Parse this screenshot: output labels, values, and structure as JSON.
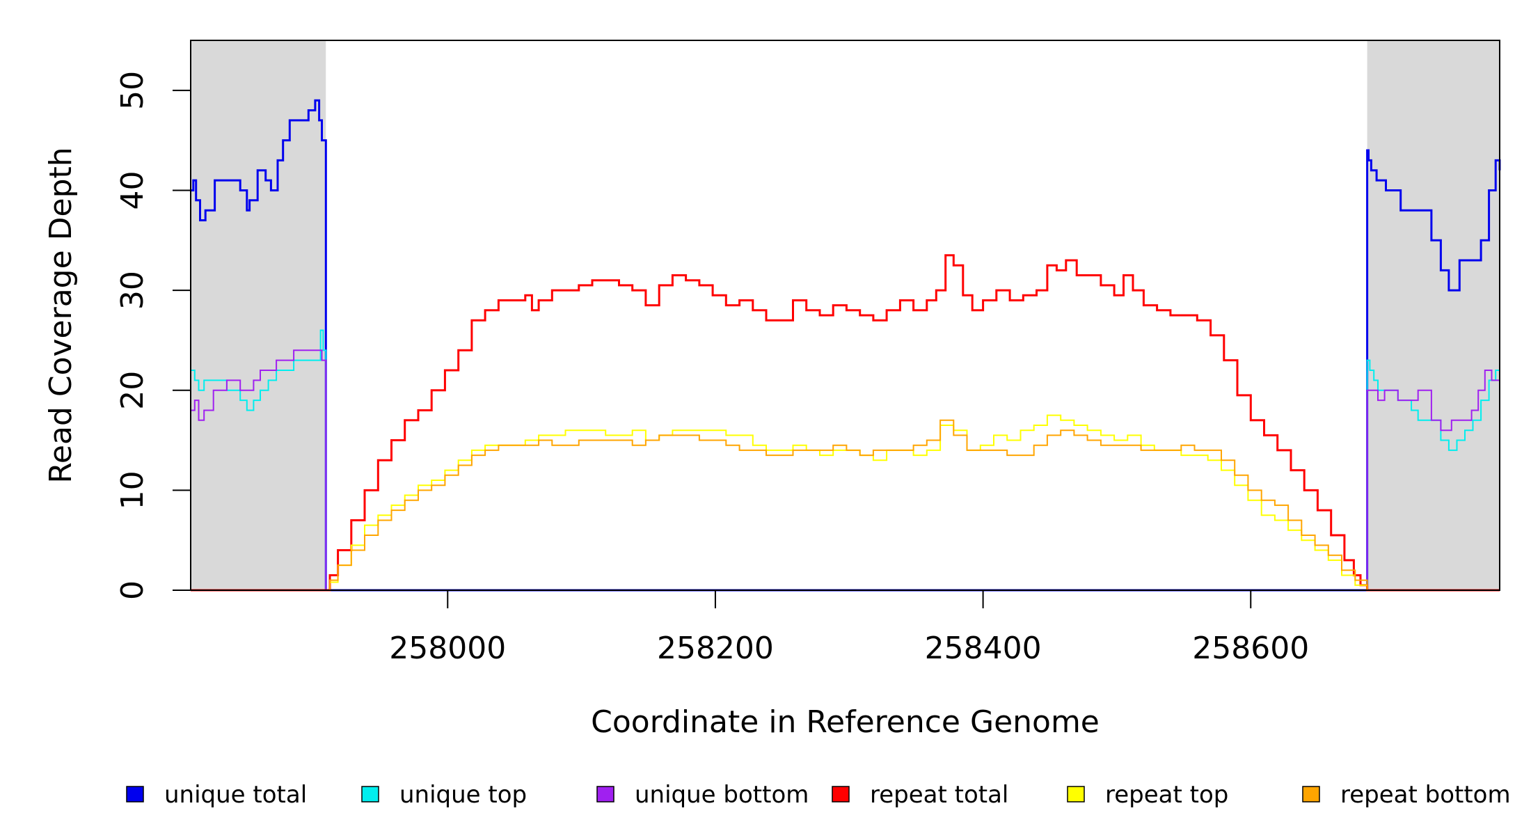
{
  "chart_data": {
    "type": "line",
    "title": "",
    "xlabel": "Coordinate in Reference Genome",
    "ylabel": "Read Coverage Depth",
    "xlim": [
      257808,
      258786
    ],
    "ylim": [
      0,
      55
    ],
    "x_ticks": [
      258000,
      258200,
      258400,
      258600
    ],
    "x_tick_labels": [
      "258000",
      "258200",
      "258400",
      "258600"
    ],
    "y_ticks": [
      0,
      10,
      20,
      30,
      40,
      50
    ],
    "y_tick_labels": [
      "0",
      "10",
      "20",
      "30",
      "40",
      "50"
    ],
    "shaded_regions": [
      {
        "x0": 257808,
        "x1": 257909,
        "color": "#d9d9d9"
      },
      {
        "x0": 258687,
        "x1": 258786,
        "color": "#d9d9d9"
      }
    ],
    "repeat_region": [
      257909,
      258687
    ],
    "grid": false,
    "legend_placement": "bottom",
    "legend": [
      {
        "label": "unique total",
        "color": "#0000ee"
      },
      {
        "label": "unique top",
        "color": "#00eeee"
      },
      {
        "label": "unique bottom",
        "color": "#a020f0"
      },
      {
        "label": "repeat total",
        "color": "#ff0000"
      },
      {
        "label": "repeat top",
        "color": "#ffff00"
      },
      {
        "label": "repeat bottom",
        "color": "#ffa500"
      }
    ],
    "series": [
      {
        "name": "unique total",
        "color": "#0000ee",
        "width": 3,
        "x": [
          257808,
          257810,
          257812,
          257815,
          257819,
          257826,
          257835,
          257845,
          257850,
          257852,
          257858,
          257864,
          257868,
          257873,
          257877,
          257882,
          257888,
          257896,
          257901,
          257904,
          257906,
          257909,
          257909,
          258687,
          258687,
          258688,
          258690,
          258694,
          258701,
          258712,
          258725,
          258735,
          258742,
          258748,
          258756,
          258764,
          258772,
          258778,
          258783,
          258786
        ],
        "y": [
          40,
          41,
          39,
          37,
          38,
          41,
          41,
          40,
          38,
          39,
          42,
          41,
          40,
          43,
          45,
          47,
          47,
          48,
          49,
          47,
          45,
          44,
          0,
          0,
          44,
          43,
          42,
          41,
          40,
          38,
          38,
          35,
          32,
          30,
          33,
          33,
          35,
          40,
          43,
          42
        ]
      },
      {
        "name": "unique top",
        "color": "#00eeee",
        "width": 2,
        "x": [
          257808,
          257811,
          257814,
          257818,
          257825,
          257835,
          257845,
          257850,
          257855,
          257860,
          257866,
          257872,
          257878,
          257885,
          257895,
          257903,
          257905,
          257907,
          257909,
          257909,
          258687,
          258687,
          258689,
          258692,
          258695,
          258700,
          258710,
          258720,
          258725,
          258735,
          258742,
          258748,
          258754,
          258760,
          258766,
          258772,
          258778,
          258783,
          258786
        ],
        "y": [
          22,
          21,
          20,
          21,
          21,
          20,
          19,
          18,
          19,
          20,
          21,
          22,
          22,
          23,
          23,
          23,
          26,
          24,
          21,
          0,
          0,
          23,
          22,
          21,
          20,
          20,
          19,
          18,
          17,
          17,
          15,
          14,
          15,
          16,
          17,
          19,
          21,
          22,
          21
        ]
      },
      {
        "name": "unique bottom",
        "color": "#a020f0",
        "width": 2,
        "x": [
          257808,
          257811,
          257814,
          257818,
          257825,
          257835,
          257845,
          257850,
          257855,
          257860,
          257866,
          257872,
          257878,
          257885,
          257895,
          257903,
          257906,
          257909,
          257909,
          258687,
          258687,
          258690,
          258695,
          258700,
          258710,
          258720,
          258725,
          258735,
          258742,
          258750,
          258758,
          258765,
          258770,
          258775,
          258780,
          258786
        ],
        "y": [
          18,
          19,
          17,
          18,
          20,
          21,
          20,
          20,
          21,
          22,
          22,
          23,
          23,
          24,
          24,
          24,
          23,
          22,
          0,
          0,
          20,
          20,
          19,
          20,
          19,
          19,
          20,
          17,
          16,
          17,
          17,
          18,
          20,
          22,
          21,
          20
        ]
      },
      {
        "name": "repeat total",
        "color": "#ff0000",
        "width": 3,
        "x": [
          257808,
          257909,
          257912,
          257918,
          257928,
          257938,
          257948,
          257958,
          257968,
          257978,
          257988,
          257998,
          258008,
          258018,
          258028,
          258038,
          258048,
          258058,
          258063,
          258068,
          258078,
          258088,
          258098,
          258108,
          258118,
          258128,
          258138,
          258148,
          258158,
          258168,
          258178,
          258188,
          258198,
          258208,
          258218,
          258228,
          258238,
          258248,
          258258,
          258268,
          258278,
          258288,
          258298,
          258308,
          258318,
          258328,
          258338,
          258348,
          258358,
          258365,
          258372,
          258378,
          258385,
          258392,
          258400,
          258410,
          258420,
          258430,
          258440,
          258448,
          258455,
          258462,
          258470,
          258478,
          258488,
          258498,
          258505,
          258512,
          258520,
          258530,
          258540,
          258550,
          258560,
          258570,
          258580,
          258590,
          258600,
          258610,
          258620,
          258630,
          258640,
          258650,
          258660,
          258670,
          258677,
          258682,
          258687,
          258786
        ],
        "y": [
          0,
          0,
          1.5,
          4,
          7,
          10,
          13,
          15,
          17,
          18,
          20,
          22,
          24,
          27,
          28,
          29,
          29,
          29.5,
          28,
          29,
          30,
          30,
          30.5,
          31,
          31,
          30.5,
          30,
          28.5,
          30.5,
          31.5,
          31,
          30.5,
          29.5,
          28.5,
          29,
          28,
          27,
          27,
          29,
          28,
          27.5,
          28.5,
          28,
          27.5,
          27,
          28,
          29,
          28,
          29,
          30,
          33.5,
          32.5,
          29.5,
          28,
          29,
          30,
          29,
          29.5,
          30,
          32.5,
          32,
          33,
          31.5,
          31.5,
          30.5,
          29.5,
          31.5,
          30,
          28.5,
          28,
          27.5,
          27.5,
          27,
          25.5,
          23,
          19.5,
          17,
          15.5,
          14,
          12,
          10,
          8,
          5.5,
          3,
          1.5,
          0.5,
          0,
          0
        ]
      },
      {
        "name": "repeat top",
        "color": "#ffff00",
        "width": 2,
        "x": [
          257808,
          257909,
          257912,
          257918,
          257928,
          257938,
          257948,
          257958,
          257968,
          257978,
          257988,
          257998,
          258008,
          258018,
          258028,
          258038,
          258048,
          258058,
          258068,
          258078,
          258088,
          258098,
          258108,
          258118,
          258128,
          258138,
          258148,
          258158,
          258168,
          258178,
          258188,
          258198,
          258208,
          258218,
          258228,
          258238,
          258248,
          258258,
          258268,
          258278,
          258288,
          258298,
          258308,
          258318,
          258328,
          258338,
          258348,
          258358,
          258368,
          258378,
          258388,
          258398,
          258408,
          258418,
          258428,
          258438,
          258448,
          258458,
          258468,
          258478,
          258488,
          258498,
          258508,
          258518,
          258528,
          258538,
          258548,
          258558,
          258568,
          258578,
          258588,
          258598,
          258608,
          258618,
          258628,
          258638,
          258648,
          258658,
          258668,
          258678,
          258687,
          258786
        ],
        "y": [
          0,
          0,
          0.8,
          2.5,
          4.5,
          6.5,
          7.5,
          8.5,
          9.5,
          10.5,
          11,
          12,
          13,
          14,
          14.5,
          14.5,
          14.5,
          15,
          15.5,
          15.5,
          16,
          16,
          16,
          15.5,
          15.5,
          16,
          15,
          15.5,
          16,
          16,
          16,
          16,
          15.5,
          15.5,
          14.5,
          14,
          14,
          14.5,
          14,
          13.5,
          14,
          14,
          13.5,
          13,
          14,
          14,
          13.5,
          14,
          16.5,
          16,
          14,
          14.5,
          15.5,
          15,
          16,
          16.5,
          17.5,
          17,
          16.5,
          16,
          15.5,
          15,
          15.5,
          14.5,
          14,
          14,
          13.5,
          13.5,
          13,
          12,
          10.5,
          9,
          7.5,
          7,
          6,
          5,
          4,
          3,
          1.5,
          0.5,
          0,
          0
        ]
      },
      {
        "name": "repeat bottom",
        "color": "#ffa500",
        "width": 2,
        "x": [
          257808,
          257909,
          257912,
          257918,
          257928,
          257938,
          257948,
          257958,
          257968,
          257978,
          257988,
          257998,
          258008,
          258018,
          258028,
          258038,
          258048,
          258058,
          258068,
          258078,
          258088,
          258098,
          258108,
          258118,
          258128,
          258138,
          258148,
          258158,
          258168,
          258178,
          258188,
          258198,
          258208,
          258218,
          258228,
          258238,
          258248,
          258258,
          258268,
          258278,
          258288,
          258298,
          258308,
          258318,
          258328,
          258338,
          258348,
          258358,
          258368,
          258378,
          258388,
          258398,
          258408,
          258418,
          258428,
          258438,
          258448,
          258458,
          258468,
          258478,
          258488,
          258498,
          258508,
          258518,
          258528,
          258538,
          258548,
          258558,
          258568,
          258578,
          258588,
          258598,
          258608,
          258618,
          258628,
          258638,
          258648,
          258658,
          258668,
          258678,
          258687,
          258786
        ],
        "y": [
          0,
          0,
          1,
          2.5,
          4,
          5.5,
          7,
          8,
          9,
          10,
          10.5,
          11.5,
          12.5,
          13.5,
          14,
          14.5,
          14.5,
          14.5,
          15,
          14.5,
          14.5,
          15,
          15,
          15,
          15,
          14.5,
          15,
          15.5,
          15.5,
          15.5,
          15,
          15,
          14.5,
          14,
          14,
          13.5,
          13.5,
          14,
          14,
          14,
          14.5,
          14,
          13.5,
          14,
          14,
          14,
          14.5,
          15,
          17,
          15.5,
          14,
          14,
          14,
          13.5,
          13.5,
          14.5,
          15.5,
          16,
          15.5,
          15,
          14.5,
          14.5,
          14.5,
          14,
          14,
          14,
          14.5,
          14,
          14,
          13,
          11.5,
          10,
          9,
          8.5,
          7,
          5.5,
          4.5,
          3.5,
          2,
          1,
          0,
          0
        ]
      }
    ]
  }
}
